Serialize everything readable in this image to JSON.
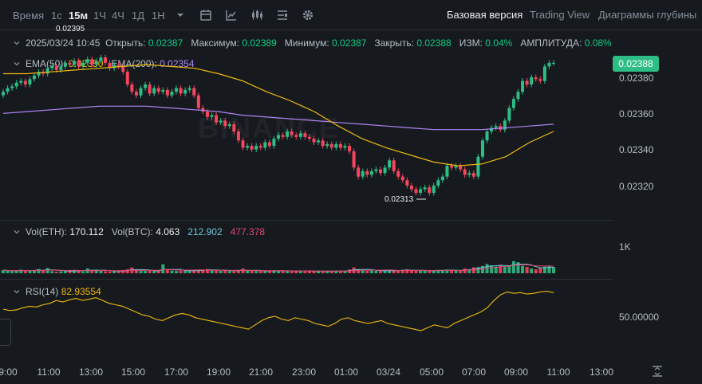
{
  "toolbar": {
    "timeframes": [
      "Время",
      "1с",
      "15м",
      "1Ч",
      "4Ч",
      "1Д",
      "1Н"
    ],
    "active_timeframe": "15м",
    "icons": [
      "chevron-down-icon",
      "calendar-icon",
      "indicator-icon",
      "candles-icon",
      "layout-icon",
      "gear-icon"
    ],
    "views": [
      "Базовая версия",
      "Trading View",
      "Диаграммы глубины"
    ],
    "active_view": "Базовая версия"
  },
  "ohlc": {
    "date": "2025/03/24 10:45",
    "open_label": "Открыть:",
    "open": "0.02387",
    "high_label": "Максимум:",
    "high": "0.02389",
    "low_label": "Минимум:",
    "low": "0.02387",
    "close_label": "Закрыть:",
    "close": "0.02388",
    "change_label": "ИЗМ:",
    "change": "0.04%",
    "amp_label": "АМПЛИТУДА:",
    "amp": "0.08%"
  },
  "ema": {
    "ema50_label": "EMA(50):",
    "ema50": "0.02350",
    "ema200_label": "EMA(200):",
    "ema200": "0.02354"
  },
  "price": {
    "current": "0.02388",
    "axis_ticks": [
      "0.02380",
      "0.02360",
      "0.02340",
      "0.02320"
    ],
    "max_marker": "0.02395",
    "min_marker": "0.02313",
    "watermark": "BINANCE"
  },
  "volume": {
    "eth_label": "Vol(ETH):",
    "eth": "170.112",
    "btc_label": "Vol(BTC):",
    "btc": "4.063",
    "ma1": "212.902",
    "ma2": "477.378",
    "axis_tick": "1K"
  },
  "rsi": {
    "label": "RSI(14)",
    "value": "82.93554",
    "axis_tick": "50.00000"
  },
  "time_axis": [
    "9:00",
    "11:00",
    "13:00",
    "15:00",
    "17:00",
    "19:00",
    "21:00",
    "23:00",
    "01:00",
    "03/24",
    "05:00",
    "07:00",
    "09:00",
    "11:00",
    "13:00"
  ],
  "colors": {
    "up": "#2ebd85",
    "down": "#f6465d",
    "ema50": "#f0b90b",
    "ema200": "#b084f5",
    "rsi": "#f0b90b",
    "vol_ma1": "#6ec6dc",
    "vol_ma2": "#e3466f"
  },
  "chart_data": {
    "type": "candlestick",
    "interval": "15m",
    "candles_close": [
      0.02372,
      0.02374,
      0.02375,
      0.02377,
      0.02378,
      0.02376,
      0.02379,
      0.02381,
      0.02383,
      0.02382,
      0.02385,
      0.02386,
      0.02384,
      0.02386,
      0.02388,
      0.02387,
      0.02389,
      0.02386,
      0.02388,
      0.0239,
      0.02387,
      0.02389,
      0.02391,
      0.02388,
      0.02385,
      0.02387,
      0.02386,
      0.02383,
      0.02376,
      0.02372,
      0.0237,
      0.02374,
      0.02376,
      0.02371,
      0.02374,
      0.02372,
      0.02373,
      0.0237,
      0.02372,
      0.02374,
      0.02371,
      0.02373,
      0.02374,
      0.0237,
      0.02363,
      0.02361,
      0.02358,
      0.02359,
      0.02355,
      0.02356,
      0.02353,
      0.02354,
      0.0235,
      0.02345,
      0.02341,
      0.02342,
      0.0234,
      0.02342,
      0.02341,
      0.02344,
      0.02342,
      0.02346,
      0.02348,
      0.02347,
      0.0235,
      0.02348,
      0.02347,
      0.02349,
      0.02347,
      0.02346,
      0.02344,
      0.02345,
      0.02342,
      0.02343,
      0.02341,
      0.02343,
      0.02341,
      0.02342,
      0.02339,
      0.0233,
      0.02325,
      0.02328,
      0.02326,
      0.02328,
      0.02329,
      0.02327,
      0.0233,
      0.02334,
      0.02328,
      0.02325,
      0.02323,
      0.0232,
      0.02318,
      0.02316,
      0.02318,
      0.02319,
      0.02316,
      0.0232,
      0.02323,
      0.02325,
      0.02331,
      0.0233,
      0.02331,
      0.02329,
      0.02326,
      0.02327,
      0.02325,
      0.02336,
      0.02345,
      0.0235,
      0.02352,
      0.02353,
      0.02351,
      0.02356,
      0.02363,
      0.02368,
      0.02372,
      0.02378,
      0.02376,
      0.0238,
      0.02379,
      0.02378,
      0.02386,
      0.02388,
      0.02388
    ],
    "ema50": [
      0.02382,
      0.02382,
      0.02383,
      0.02384,
      0.02385,
      0.02386,
      0.02387,
      0.02386,
      0.02385,
      0.02382,
      0.02378,
      0.02372,
      0.02367,
      0.02361,
      0.02353,
      0.02346,
      0.02341,
      0.02337,
      0.02333,
      0.02331,
      0.02332,
      0.02336,
      0.02344,
      0.0235
    ],
    "ema200": [
      0.0236,
      0.02361,
      0.02362,
      0.02363,
      0.02364,
      0.02364,
      0.02364,
      0.02363,
      0.02362,
      0.02361,
      0.02359,
      0.02358,
      0.02357,
      0.02356,
      0.02355,
      0.02354,
      0.02353,
      0.02352,
      0.02351,
      0.02351,
      0.02351,
      0.02352,
      0.02353,
      0.02354
    ],
    "volume": [
      120,
      90,
      80,
      100,
      140,
      85,
      120,
      95,
      160,
      110,
      200,
      80,
      60,
      75,
      90,
      95,
      130,
      85,
      70,
      180,
      90,
      140,
      100,
      75,
      60,
      85,
      95,
      120,
      150,
      220,
      110,
      90,
      95,
      100,
      80,
      75,
      340,
      130,
      100,
      85,
      90,
      110,
      95,
      100,
      120,
      140,
      160,
      110,
      95,
      90,
      130,
      85,
      70,
      110,
      180,
      95,
      90,
      85,
      80,
      95,
      100,
      110,
      75,
      90,
      100,
      85,
      80,
      95,
      90,
      85,
      75,
      80,
      70,
      85,
      90,
      80,
      95,
      85,
      140,
      220,
      160,
      120,
      95,
      100,
      90,
      85,
      110,
      120,
      95,
      100,
      130,
      150,
      110,
      90,
      100,
      95,
      85,
      110,
      130,
      120,
      140,
      100,
      95,
      90,
      180,
      160,
      230,
      240,
      280,
      350,
      300,
      260,
      320,
      250,
      300,
      460,
      420,
      280,
      240,
      180,
      150,
      200,
      250,
      290,
      240
    ],
    "rsi": [
      60,
      58,
      59,
      62,
      64,
      63,
      66,
      68,
      72,
      70,
      73,
      75,
      72,
      74,
      76,
      72,
      68,
      66,
      64,
      60,
      56,
      52,
      50,
      46,
      44,
      48,
      52,
      54,
      52,
      48,
      46,
      44,
      42,
      40,
      38,
      36,
      34,
      32,
      38,
      44,
      48,
      50,
      46,
      44,
      48,
      46,
      44,
      40,
      38,
      36,
      40,
      46,
      48,
      44,
      42,
      40,
      42,
      44,
      40,
      38,
      36,
      34,
      32,
      30,
      34,
      38,
      36,
      34,
      40,
      44,
      48,
      52,
      56,
      62,
      72,
      80,
      84,
      82,
      83,
      81,
      82,
      84,
      85,
      83
    ]
  }
}
